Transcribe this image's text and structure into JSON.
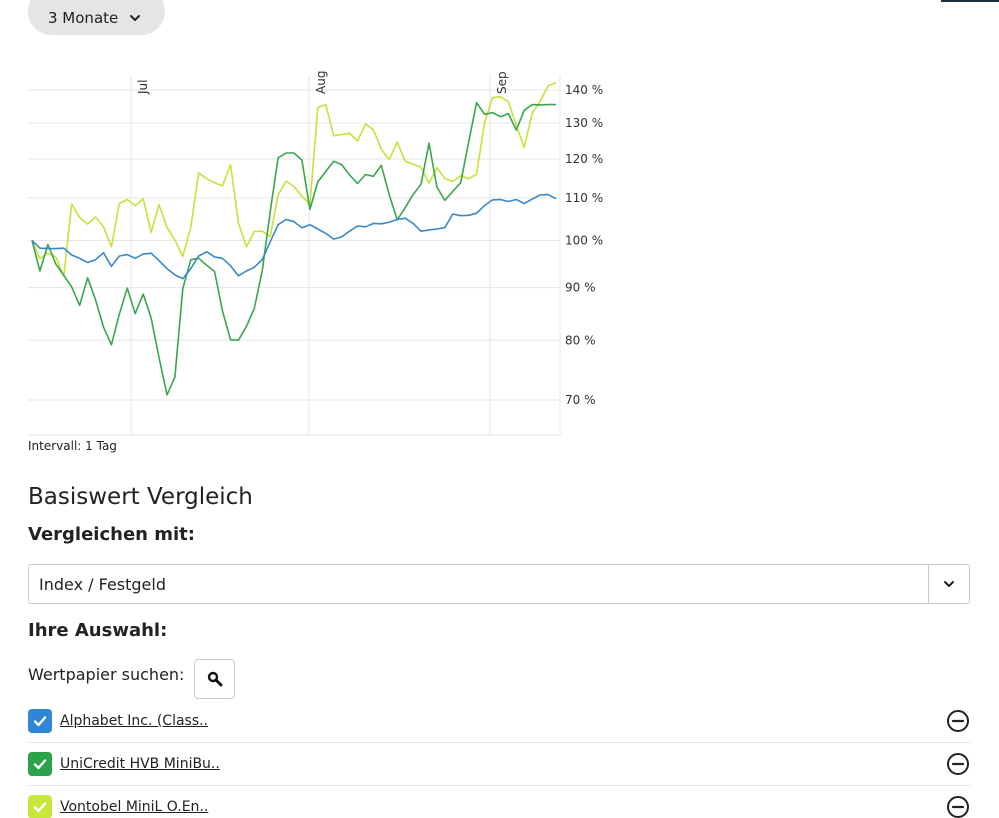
{
  "period": {
    "label": "3 Monate"
  },
  "chart_data": {
    "type": "line",
    "y_scale": "log",
    "yticks": [
      "140 %",
      "130 %",
      "120 %",
      "110 %",
      "100 %",
      "90 %",
      "80 %",
      "70 %"
    ],
    "ytick_values": [
      140,
      130,
      120,
      110,
      100,
      90,
      80,
      70
    ],
    "months": [
      "Jul",
      "Aug",
      "Sep"
    ],
    "grid": true,
    "series": [
      {
        "color": "#3a87c8",
        "values": [
          100,
          98.3,
          98.2,
          98.2,
          98.3,
          96.8,
          96.1,
          95.2,
          95.8,
          97.3,
          94.4,
          96.6,
          96.9,
          96.1,
          97.0,
          97.2,
          95.6,
          93.9,
          92.6,
          91.8,
          93.9,
          96.6,
          97.5,
          96.4,
          96.1,
          94.5,
          92.4,
          93.4,
          94.2,
          95.8,
          99.7,
          103.6,
          104.8,
          104.3,
          102.9,
          103.6,
          102.6,
          101.6,
          100.3,
          100.8,
          102.1,
          103.3,
          103.1,
          103.9,
          103.8,
          104.2,
          104.8,
          105.1,
          103.9,
          102.1,
          102.4,
          102.6,
          102.9,
          106.1,
          105.7,
          105.8,
          106.3,
          108.1,
          109.5,
          109.6,
          109.1,
          109.6,
          108.6,
          109.7,
          110.7,
          110.8,
          109.8
        ]
      },
      {
        "color": "#3aa64c",
        "values": [
          100,
          93.4,
          99.1,
          94.9,
          92.5,
          90.1,
          86.5,
          92.0,
          87.6,
          82.4,
          79.2,
          84.8,
          89.9,
          84.9,
          88.7,
          84.1,
          77.0,
          70.8,
          73.7,
          89.8,
          95.8,
          96.1,
          94.6,
          93.3,
          85.4,
          80.1,
          80.0,
          82.5,
          85.9,
          93.4,
          106.6,
          120.3,
          121.6,
          121.6,
          119.7,
          107.2,
          114.0,
          116.7,
          119.4,
          118.5,
          115.8,
          113.6,
          115.9,
          115.4,
          118.3,
          110.7,
          104.7,
          107.6,
          110.8,
          113.4,
          124.3,
          112.7,
          109.4,
          111.6,
          113.8,
          124.7,
          136.1,
          132.6,
          133.1,
          131.9,
          132.8,
          128.0,
          133.8,
          135.5,
          135.4,
          135.5,
          135.5
        ]
      },
      {
        "color": "#c8e03a",
        "values": [
          100,
          96.0,
          97.2,
          96.4,
          92.3,
          108.5,
          105.3,
          103.7,
          105.4,
          103.1,
          98.6,
          108.6,
          109.6,
          108.1,
          109.8,
          101.8,
          108.3,
          103.0,
          100.1,
          96.5,
          103.0,
          116.3,
          114.8,
          113.8,
          113.0,
          118.5,
          104.0,
          98.6,
          102.0,
          102.1,
          100.9,
          110.7,
          114.2,
          112.8,
          110.4,
          108.4,
          134.6,
          135.5,
          126.4,
          126.7,
          127.1,
          124.9,
          129.7,
          128.1,
          122.6,
          119.8,
          124.6,
          119.4,
          118.6,
          117.8,
          113.7,
          117.7,
          114.9,
          114.1,
          115.6,
          114.8,
          116.0,
          130.1,
          137.6,
          137.9,
          136.4,
          129.4,
          123.1,
          132.9,
          136.5,
          141.3,
          142.3
        ]
      }
    ]
  },
  "interval": {
    "label": "Intervall: 1 Tag"
  },
  "comparison": {
    "title": "Basiswert Vergleich",
    "compare_label": "Vergleichen mit:",
    "compare_value": "Index / Festgeld",
    "choice_label": "Ihre Auswahl:",
    "search_label": "Wertpapier suchen:",
    "selections": [
      {
        "label": "Alphabet Inc. (Class..",
        "color": "#2f86d6"
      },
      {
        "label": "UniCredit HVB MiniBu..",
        "color": "#2aa34a"
      },
      {
        "label": "Vontobel MiniL O.En..",
        "color": "#c6e83a"
      }
    ]
  },
  "icons": {
    "period_chevron": "chevron-down-icon",
    "select_chevron": "chevron-down-icon",
    "search": "search-icon",
    "checkbox": "check-icon",
    "remove": "minus-circle-icon"
  }
}
